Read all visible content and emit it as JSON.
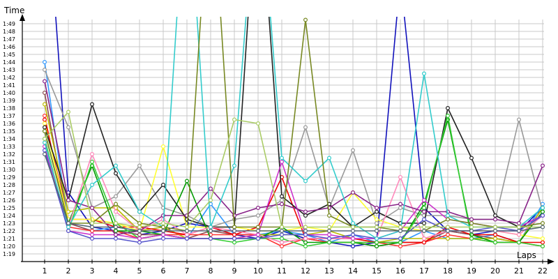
{
  "chart_data": {
    "type": "line",
    "ylabel": "Time",
    "xlabel": "Laps",
    "x": [
      1,
      2,
      3,
      4,
      5,
      6,
      7,
      8,
      9,
      10,
      11,
      12,
      13,
      14,
      15,
      16,
      17,
      18,
      19,
      20,
      21,
      22
    ],
    "y_ticks": [
      "1:19",
      "1:20",
      "1:21",
      "1:22",
      "1:23",
      "1:24",
      "1:25",
      "1:26",
      "1:27",
      "1:28",
      "1:29",
      "1:30",
      "1:31",
      "1:32",
      "1:33",
      "1:34",
      "1:35",
      "1:36",
      "1:37",
      "1:38",
      "1:39",
      "1:40",
      "1:41",
      "1:42",
      "1:43",
      "1:44",
      "1:45",
      "1:46",
      "1:47",
      "1:48",
      "1:49"
    ],
    "ylim_seconds": [
      78,
      110
    ],
    "grid": true,
    "series": [
      {
        "color": "#1111bb",
        "values": [
          130,
          87.0,
          82.5,
          82.0,
          81.5,
          82.0,
          83.0,
          82.5,
          81.5,
          81.0,
          82.0,
          81.0,
          80.5,
          80.0,
          80.5,
          115,
          85.0,
          82.0,
          81.5,
          82.0,
          82.0,
          85.0
        ]
      },
      {
        "color": "#3399ff",
        "values": [
          104.0,
          83.0,
          82.0,
          82.5,
          82.0,
          82.5,
          81.0,
          85.5,
          81.5,
          81.5,
          82.0,
          81.5,
          80.5,
          81.5,
          80.5,
          80.5,
          82.0,
          81.0,
          81.0,
          81.5,
          80.5,
          85.5
        ]
      },
      {
        "color": "#999999",
        "values": [
          103.0,
          95.5,
          85.0,
          86.5,
          90.5,
          85.0,
          84.0,
          82.5,
          83.5,
          84.0,
          86.0,
          95.5,
          85.0,
          92.5,
          83.0,
          85.0,
          84.0,
          84.0,
          83.5,
          83.5,
          96.5,
          84.5
        ]
      },
      {
        "color": "#8b4d4d",
        "values": [
          100.0,
          83.0,
          82.0,
          82.0,
          81.5,
          81.5,
          81.0,
          82.0,
          81.5,
          81.5,
          80.5,
          81.0,
          80.5,
          80.5,
          80.0,
          80.5,
          80.5,
          82.0,
          81.5,
          81.0,
          80.5,
          85.0
        ]
      },
      {
        "color": "#bbbb00",
        "values": [
          98.5,
          84.5,
          85.0,
          85.0,
          82.0,
          82.5,
          81.0,
          81.0,
          81.0,
          81.5,
          81.5,
          81.5,
          82.0,
          81.0,
          80.5,
          81.0,
          81.0,
          81.0,
          81.0,
          81.0,
          80.5,
          85.0
        ]
      },
      {
        "color": "#ff3333",
        "values": [
          97.0,
          82.5,
          82.0,
          82.0,
          81.0,
          81.5,
          81.5,
          81.5,
          81.5,
          81.5,
          80.0,
          81.0,
          80.5,
          80.5,
          80.5,
          80.0,
          80.5,
          81.5,
          81.0,
          80.5,
          80.5,
          80.0
        ]
      },
      {
        "color": "#ee0000",
        "values": [
          96.5,
          83.5,
          83.5,
          82.5,
          82.5,
          82.0,
          81.5,
          82.5,
          81.5,
          82.5,
          89.0,
          81.0,
          81.0,
          81.0,
          80.5,
          80.5,
          80.5,
          82.5,
          81.5,
          81.5,
          80.5,
          80.5
        ]
      },
      {
        "color": "#ffff33",
        "values": [
          96.0,
          83.5,
          83.5,
          83.0,
          82.0,
          93.0,
          82.5,
          82.5,
          82.5,
          82.0,
          82.0,
          82.5,
          82.0,
          87.0,
          83.5,
          82.5,
          82.0,
          82.0,
          82.0,
          82.0,
          81.5,
          81.0
        ]
      },
      {
        "color": "#222222",
        "values": [
          95.5,
          86.0,
          98.5,
          89.5,
          84.5,
          88.0,
          83.5,
          82.5,
          82.5,
          130,
          86.5,
          84.0,
          85.5,
          82.5,
          84.5,
          83.0,
          83.0,
          98.0,
          91.5,
          84.0,
          82.5,
          84.0
        ]
      },
      {
        "color": "#009900",
        "values": [
          95.0,
          83.0,
          90.5,
          82.0,
          82.0,
          81.5,
          88.5,
          81.0,
          81.0,
          81.0,
          82.5,
          80.5,
          80.5,
          80.5,
          80.0,
          80.5,
          85.5,
          96.5,
          81.5,
          80.5,
          80.5,
          84.5
        ]
      },
      {
        "color": "#33cc33",
        "values": [
          94.0,
          82.0,
          91.0,
          83.0,
          81.0,
          81.5,
          81.0,
          81.0,
          80.5,
          81.0,
          81.0,
          80.0,
          80.5,
          80.5,
          80.5,
          80.5,
          85.0,
          97.0,
          81.0,
          80.5,
          80.5,
          80.0
        ]
      },
      {
        "color": "#ff88bb",
        "values": [
          93.5,
          82.5,
          92.0,
          84.5,
          82.0,
          83.5,
          81.5,
          82.5,
          82.0,
          81.5,
          80.5,
          81.0,
          81.0,
          81.0,
          81.0,
          89.0,
          81.0,
          82.0,
          82.0,
          82.0,
          81.5,
          84.0
        ]
      },
      {
        "color": "#cc33cc",
        "values": [
          93.0,
          82.0,
          81.5,
          81.5,
          81.0,
          81.5,
          81.0,
          81.0,
          81.0,
          81.5,
          91.0,
          81.5,
          81.5,
          81.0,
          81.0,
          82.0,
          86.0,
          83.5,
          83.0,
          82.5,
          82.5,
          84.0
        ]
      },
      {
        "color": "#5555cc",
        "values": [
          92.5,
          82.0,
          81.0,
          81.0,
          80.5,
          81.0,
          81.0,
          81.0,
          81.0,
          81.0,
          81.5,
          81.5,
          81.0,
          81.5,
          81.0,
          81.0,
          83.5,
          82.0,
          82.0,
          82.5,
          82.0,
          84.0
        ]
      },
      {
        "color": "#882288",
        "values": [
          101.5,
          86.0,
          85.0,
          81.5,
          82.0,
          84.0,
          84.0,
          87.5,
          84.0,
          85.0,
          85.5,
          84.5,
          85.0,
          87.0,
          85.0,
          85.5,
          84.5,
          84.5,
          83.5,
          83.5,
          83.0,
          90.5
        ]
      },
      {
        "color": "#33cccc",
        "values": [
          93.5,
          82.5,
          88.0,
          90.5,
          84.5,
          82.5,
          130,
          82.5,
          90.5,
          130,
          91.5,
          88.5,
          91.5,
          83.0,
          81.0,
          82.0,
          102.5,
          84.0,
          82.5,
          82.5,
          82.5,
          85.0
        ]
      },
      {
        "color": "#778822",
        "values": [
          95.0,
          83.0,
          83.0,
          85.5,
          83.0,
          82.5,
          82.0,
          130,
          82.5,
          82.5,
          82.5,
          109.5,
          84.0,
          82.5,
          82.5,
          82.0,
          82.0,
          83.5,
          83.0,
          82.5,
          82.5,
          83.0
        ]
      },
      {
        "color": "#aacc66",
        "values": [
          94.0,
          97.5,
          83.0,
          83.0,
          82.5,
          83.0,
          82.5,
          86.0,
          96.5,
          96.0,
          82.5,
          82.5,
          82.5,
          82.5,
          82.5,
          82.5,
          82.5,
          82.5,
          82.5,
          82.5,
          82.5,
          82.5
        ]
      },
      {
        "color": "#556677",
        "values": [
          92.0,
          83.0,
          82.5,
          82.5,
          82.0,
          82.0,
          82.0,
          82.0,
          82.0,
          82.0,
          82.0,
          82.0,
          82.0,
          82.0,
          82.0,
          82.0,
          82.0,
          82.0,
          82.0,
          82.0,
          82.0,
          82.5
        ]
      }
    ]
  }
}
